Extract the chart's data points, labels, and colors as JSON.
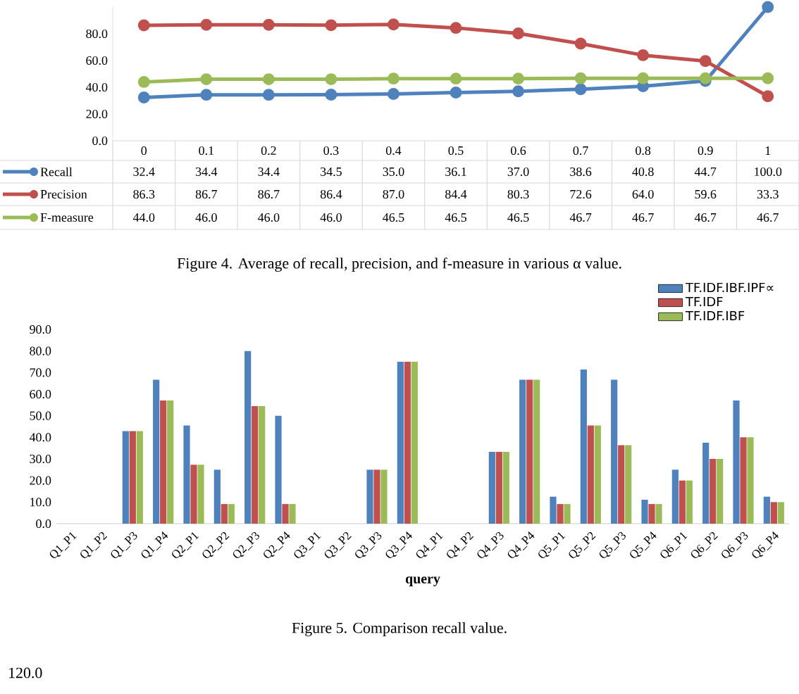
{
  "chart_data": [
    {
      "type": "line",
      "categories": [
        "0",
        "0.1",
        "0.2",
        "0.3",
        "0.4",
        "0.5",
        "0.6",
        "0.7",
        "0.8",
        "0.9",
        "1"
      ],
      "series": [
        {
          "name": "Recall",
          "color": "#4f81bd",
          "values": [
            32.4,
            34.4,
            34.4,
            34.5,
            35.0,
            36.1,
            37.0,
            38.6,
            40.8,
            44.7,
            100.0
          ],
          "value_labels": [
            "32.4",
            "34.4",
            "34.4",
            "34.5",
            "35.0",
            "36.1",
            "37.0",
            "38.6",
            "40.8",
            "44.7",
            "100.0"
          ]
        },
        {
          "name": "Precision",
          "color": "#c0504d",
          "values": [
            86.3,
            86.7,
            86.7,
            86.4,
            87.0,
            84.4,
            80.3,
            72.6,
            64.0,
            59.6,
            33.3
          ],
          "value_labels": [
            "86.3",
            "86.7",
            "86.7",
            "86.4",
            "87.0",
            "84.4",
            "80.3",
            "72.6",
            "64.0",
            "59.6",
            "33.3"
          ]
        },
        {
          "name": "F-measure",
          "color": "#9bbb59",
          "values": [
            44.0,
            46.0,
            46.0,
            46.0,
            46.5,
            46.5,
            46.5,
            46.7,
            46.7,
            46.7,
            46.7
          ],
          "value_labels": [
            "44.0",
            "46.0",
            "46.0",
            "46.0",
            "46.5",
            "46.5",
            "46.5",
            "46.7",
            "46.7",
            "46.7",
            "46.7"
          ]
        }
      ],
      "ylim": [
        0,
        100
      ],
      "yticks": [
        {
          "value": 0,
          "label": "0.0"
        },
        {
          "value": 20,
          "label": "20.0"
        },
        {
          "value": 40,
          "label": "40.0"
        },
        {
          "value": 60,
          "label": "60.0"
        },
        {
          "value": 80,
          "label": "80.0"
        }
      ],
      "legend": "bottom",
      "marker": "circle",
      "line_style": "solid",
      "annotations": [
        "Figure 4.  Average of recall, precision, and f-measure in various α value."
      ]
    },
    {
      "type": "bar",
      "xlabel": "query",
      "categories": [
        "Q1_P1",
        "Q1_P2",
        "Q1_P3",
        "Q1_P4",
        "Q2_P1",
        "Q2_P2",
        "Q2_P3",
        "Q2_P4",
        "Q3_P1",
        "Q3_P2",
        "Q3_P3",
        "Q3_P4",
        "Q4_P1",
        "Q4_P2",
        "Q4_P3",
        "Q4_P4",
        "Q5_P1",
        "Q5_P2",
        "Q5_P3",
        "Q5_P4",
        "Q6_P1",
        "Q6_P2",
        "Q6_P3",
        "Q6_P4"
      ],
      "series": [
        {
          "name": "TF.IDF.IBF.IPF∝",
          "color": "#4f81bd",
          "values": [
            0,
            0,
            42.9,
            66.7,
            45.5,
            25.0,
            80.0,
            50.0,
            0,
            0,
            25.0,
            75.0,
            0,
            0,
            33.3,
            66.7,
            12.5,
            71.4,
            66.7,
            11.1,
            25.0,
            37.5,
            57.1,
            12.5
          ]
        },
        {
          "name": "TF.IDF",
          "color": "#c0504d",
          "values": [
            0,
            0,
            42.9,
            57.1,
            27.3,
            9.1,
            54.5,
            9.1,
            0,
            0,
            25.0,
            75.0,
            0,
            0,
            33.3,
            66.7,
            9.1,
            45.5,
            36.4,
            9.1,
            20.0,
            30.0,
            40.0,
            10.0
          ]
        },
        {
          "name": "TF.IDF.IBF",
          "color": "#9bbb59",
          "values": [
            0,
            0,
            42.9,
            57.1,
            27.3,
            9.1,
            54.5,
            9.1,
            0,
            0,
            25.0,
            75.0,
            0,
            0,
            33.3,
            66.7,
            9.1,
            45.5,
            36.4,
            9.1,
            20.0,
            30.0,
            40.0,
            10.0
          ]
        }
      ],
      "ylim": [
        0,
        90
      ],
      "yticks": [
        {
          "value": 0,
          "label": "0.0"
        },
        {
          "value": 10,
          "label": "10.0"
        },
        {
          "value": 20,
          "label": "20.0"
        },
        {
          "value": 30,
          "label": "30.0"
        },
        {
          "value": 40,
          "label": "40.0"
        },
        {
          "value": 50,
          "label": "50.0"
        },
        {
          "value": 60,
          "label": "60.0"
        },
        {
          "value": 70,
          "label": "70.0"
        },
        {
          "value": 80,
          "label": "80.0"
        },
        {
          "value": 90,
          "label": "90.0"
        }
      ],
      "legend": "top right",
      "annotations": [
        "Figure 5.  Comparison recall value."
      ]
    },
    {
      "type": "other",
      "annotations": [
        "120.0"
      ]
    }
  ]
}
